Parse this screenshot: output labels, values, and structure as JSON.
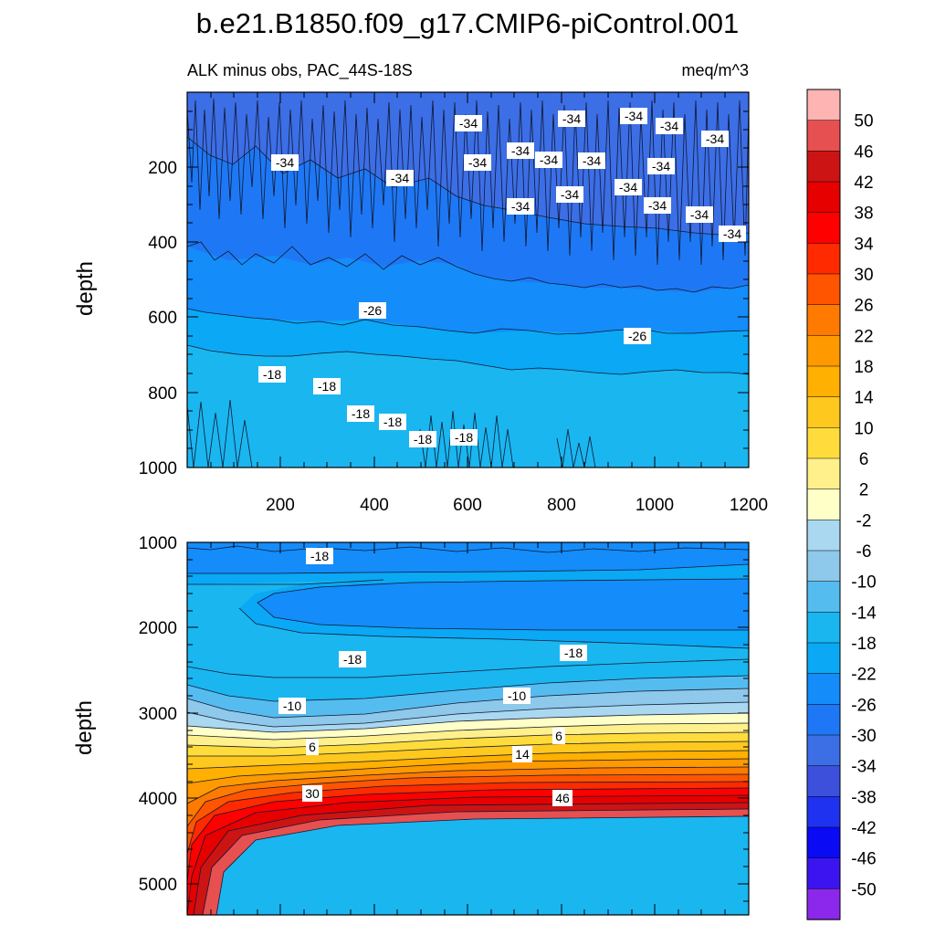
{
  "chart_data": {
    "type": "contour",
    "title": "b.e21.B1850.f09_g17.CMIP6-piControl.001",
    "subtitle_left": "ALK minus obs, PAC_44S-18S",
    "subtitle_right": "meq/m^3",
    "colorbar": {
      "levels": [
        "50",
        "46",
        "42",
        "38",
        "34",
        "30",
        "26",
        "22",
        "18",
        "14",
        "10",
        "6",
        "2",
        "-2",
        "-6",
        "-10",
        "-14",
        "-18",
        "-22",
        "-26",
        "-30",
        "-34",
        "-38",
        "-42",
        "-46",
        "-50"
      ],
      "colors": [
        "#ffb4b4",
        "#e65050",
        "#cc1414",
        "#e60000",
        "#ff0000",
        "#ff2a00",
        "#ff5500",
        "#ff7a00",
        "#ff9900",
        "#ffb000",
        "#ffc81e",
        "#ffdc3c",
        "#fff08c",
        "#ffffc8",
        "#aad8f0",
        "#8ec8ea",
        "#55bcf0",
        "#1ab6f0",
        "#0aa8f5",
        "#148cfa",
        "#1e78f5",
        "#3c6ee6",
        "#3c50dc",
        "#1e32f0",
        "#0a0af5",
        "#3c14f0",
        "#8c28eb"
      ]
    },
    "panels": [
      {
        "name": "upper",
        "ylabel": "depth",
        "ylim": [
          0,
          1000
        ],
        "yticks": [
          "200",
          "400",
          "600",
          "800",
          "1000"
        ],
        "xlim": [
          0,
          1200
        ],
        "xticks": [
          "200",
          "400",
          "600",
          "800",
          "1000",
          "1200"
        ],
        "contour_labels": [
          {
            "text": "-34",
            "x": 312,
            "y": 178
          },
          {
            "text": "-34",
            "x": 438,
            "y": 195
          },
          {
            "text": "-34",
            "x": 513,
            "y": 135
          },
          {
            "text": "-34",
            "x": 523,
            "y": 178
          },
          {
            "text": "-34",
            "x": 570,
            "y": 165
          },
          {
            "text": "-34",
            "x": 601,
            "y": 175
          },
          {
            "text": "-34",
            "x": 626,
            "y": 130
          },
          {
            "text": "-34",
            "x": 648,
            "y": 176
          },
          {
            "text": "-34",
            "x": 694,
            "y": 127
          },
          {
            "text": "-34",
            "x": 733,
            "y": 138
          },
          {
            "text": "-34",
            "x": 783,
            "y": 152
          },
          {
            "text": "-34",
            "x": 724,
            "y": 182
          },
          {
            "text": "-34",
            "x": 570,
            "y": 226
          },
          {
            "text": "-34",
            "x": 624,
            "y": 213
          },
          {
            "text": "-34",
            "x": 688,
            "y": 205
          },
          {
            "text": "-34",
            "x": 720,
            "y": 225
          },
          {
            "text": "-34",
            "x": 766,
            "y": 235
          },
          {
            "text": "-34",
            "x": 802,
            "y": 256
          },
          {
            "text": "-26",
            "x": 408,
            "y": 340
          },
          {
            "text": "-26",
            "x": 698,
            "y": 368
          },
          {
            "text": "-18",
            "x": 298,
            "y": 410
          },
          {
            "text": "-18",
            "x": 358,
            "y": 423
          },
          {
            "text": "-18",
            "x": 395,
            "y": 453
          },
          {
            "text": "-18",
            "x": 430,
            "y": 462
          },
          {
            "text": "-18",
            "x": 463,
            "y": 481
          },
          {
            "text": "-18",
            "x": 508,
            "y": 479
          }
        ]
      },
      {
        "name": "lower",
        "ylabel": "depth",
        "ylim": [
          1000,
          5400
        ],
        "yticks": [
          "1000",
          "2000",
          "3000",
          "4000",
          "5000"
        ],
        "xlim": [
          0,
          1200
        ],
        "contour_labels": [
          {
            "text": "-18",
            "x": 350,
            "y": 609
          },
          {
            "text": "-18",
            "x": 386,
            "y": 722
          },
          {
            "text": "-18",
            "x": 628,
            "y": 715
          },
          {
            "text": "-10",
            "x": 320,
            "y": 773
          },
          {
            "text": "-10",
            "x": 566,
            "y": 762
          },
          {
            "text": "6",
            "x": 342,
            "y": 818
          },
          {
            "text": "6",
            "x": 612,
            "y": 806
          },
          {
            "text": "14",
            "x": 572,
            "y": 826
          },
          {
            "text": "30",
            "x": 342,
            "y": 869
          },
          {
            "text": "46",
            "x": 616,
            "y": 874
          }
        ]
      }
    ]
  }
}
